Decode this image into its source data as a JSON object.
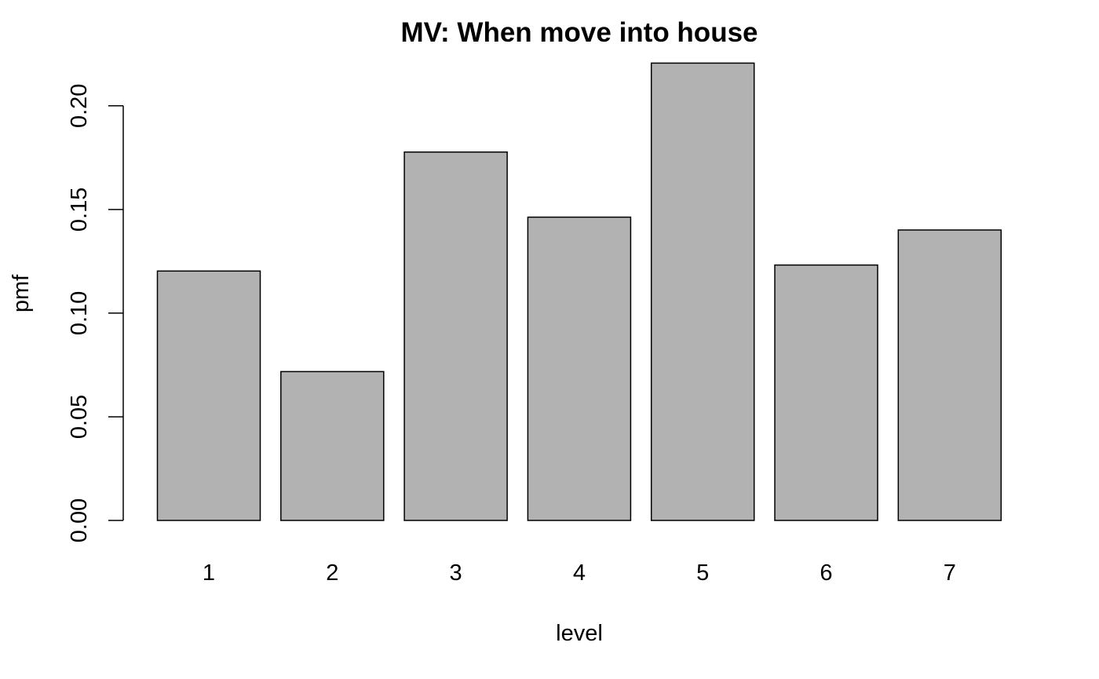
{
  "chart_data": {
    "type": "bar",
    "title": "MV: When move into house",
    "xlabel": "level",
    "ylabel": "pmf",
    "categories": [
      "1",
      "2",
      "3",
      "4",
      "5",
      "6",
      "7"
    ],
    "values": [
      0.1203,
      0.0718,
      0.1777,
      0.1463,
      0.2206,
      0.1232,
      0.1401
    ],
    "ylim": [
      0,
      0.22
    ],
    "yticks": [
      0.0,
      0.05,
      0.1,
      0.15,
      0.2
    ],
    "ytick_labels": [
      "0.00",
      "0.05",
      "0.10",
      "0.15",
      "0.20"
    ],
    "grid": false,
    "legend": "none",
    "colors": {
      "bar_fill": "#b2b2b2",
      "bar_stroke": "#000000",
      "axis": "#000000"
    }
  }
}
